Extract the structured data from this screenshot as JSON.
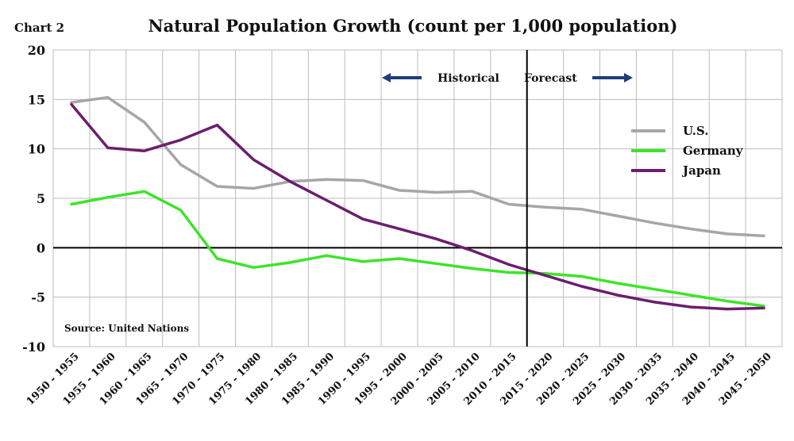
{
  "chart_label": "Chart 2",
  "source": "Source: United Nations",
  "annotations": {
    "historical": "Historical",
    "forecast": "Forecast"
  },
  "colors": {
    "us": "#a6a6a6",
    "germany": "#3ee32a",
    "japan": "#6b1e6e",
    "arrow": "#1f3d7a"
  },
  "chart_data": {
    "type": "line",
    "title": "Natural Population Growth (count per 1,000 population)",
    "xlabel": "",
    "ylabel": "",
    "ylim": [
      -10,
      20
    ],
    "yticks": [
      20,
      15,
      10,
      5,
      0,
      -5,
      -10
    ],
    "grid": true,
    "legend_position": "right",
    "categories": [
      "1950 - 1955",
      "1955 - 1960",
      "1960 - 1965",
      "1965 - 1970",
      "1970 - 1975",
      "1975 - 1980",
      "1980 - 1985",
      "1985 - 1990",
      "1990 - 1995",
      "1995 - 2000",
      "2000 - 2005",
      "2005 - 2010",
      "2010 - 2015",
      "2015 - 2020",
      "2020 - 2025",
      "2025 - 2030",
      "2030 - 2035",
      "2035 - 2040",
      "2040 - 2045",
      "2045 - 2050"
    ],
    "divider_after_category": "2010 - 2015",
    "series": [
      {
        "name": "U.S.",
        "key": "us",
        "values": [
          14.7,
          15.2,
          12.7,
          8.4,
          6.2,
          6.0,
          6.7,
          6.9,
          6.8,
          5.8,
          5.6,
          5.7,
          4.4,
          4.1,
          3.9,
          3.2,
          2.5,
          1.9,
          1.4,
          1.2
        ]
      },
      {
        "name": "Germany",
        "key": "germany",
        "values": [
          4.4,
          5.1,
          5.7,
          3.8,
          -1.1,
          -2.0,
          -1.5,
          -0.8,
          -1.4,
          -1.1,
          -1.6,
          -2.1,
          -2.5,
          -2.6,
          -2.9,
          -3.6,
          -4.2,
          -4.8,
          -5.4,
          -5.9
        ]
      },
      {
        "name": "Japan",
        "key": "japan",
        "values": [
          14.5,
          10.1,
          9.8,
          10.9,
          12.4,
          8.9,
          6.7,
          4.8,
          2.9,
          1.9,
          0.9,
          -0.3,
          -1.7,
          -2.8,
          -3.9,
          -4.8,
          -5.5,
          -6.0,
          -6.2,
          -6.1
        ]
      }
    ]
  }
}
